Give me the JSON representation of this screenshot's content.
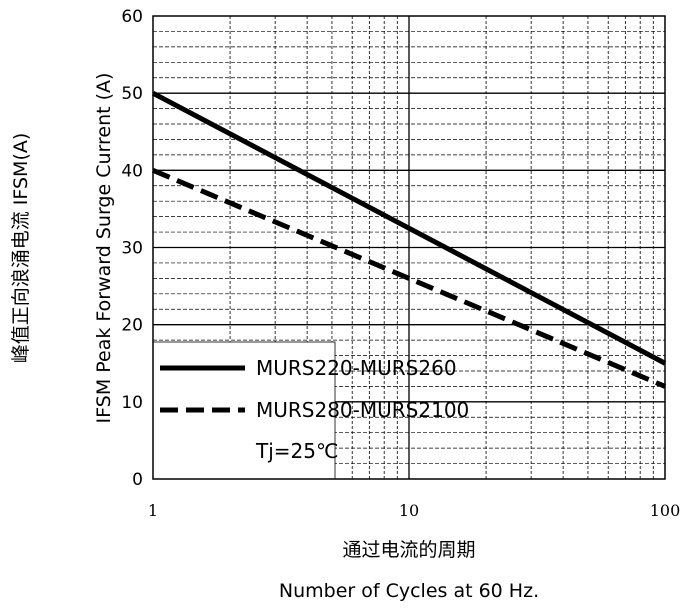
{
  "chart_data": {
    "type": "line",
    "x_scale": "log",
    "xlim": [
      1,
      100
    ],
    "ylim": [
      0,
      60
    ],
    "x_ticks": [
      "1",
      "10",
      "100"
    ],
    "y_ticks": [
      "0",
      "10",
      "20",
      "30",
      "40",
      "50",
      "60"
    ],
    "xlabel_cn": "通过电流的周期",
    "xlabel_en": "Number  of  Cycles at 60 Hz.",
    "ylabel_cn": "峰值正向浪涌电流 IFSM(A)",
    "ylabel_en": "IFSM  Peak Forward Surge Current (A)",
    "grid": true,
    "legend_placement": "bottom-left",
    "note": "Tj=25℃",
    "series": [
      {
        "name": "MURS220-MURS260",
        "style": "solid",
        "x": [
          1,
          100
        ],
        "y": [
          50,
          15
        ]
      },
      {
        "name": "MURS280-MURS2100",
        "style": "dashed",
        "x": [
          1,
          100
        ],
        "y": [
          40,
          12
        ]
      }
    ],
    "colors": {
      "line": "#000000",
      "grid": "#000000",
      "background": "#ffffff"
    }
  }
}
